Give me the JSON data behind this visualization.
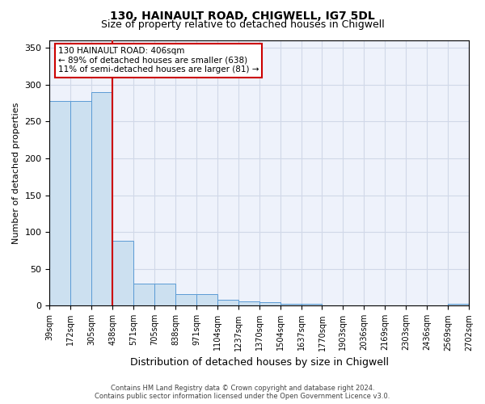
{
  "title1": "130, HAINAULT ROAD, CHIGWELL, IG7 5DL",
  "title2": "Size of property relative to detached houses in Chigwell",
  "xlabel": "Distribution of detached houses by size in Chigwell",
  "ylabel": "Number of detached properties",
  "tick_labels": [
    "39sqm",
    "172sqm",
    "305sqm",
    "438sqm",
    "571sqm",
    "705sqm",
    "838sqm",
    "971sqm",
    "1104sqm",
    "1237sqm",
    "1370sqm",
    "1504sqm",
    "1637sqm",
    "1770sqm",
    "1903sqm",
    "2036sqm",
    "2169sqm",
    "2303sqm",
    "2436sqm",
    "2569sqm",
    "2702sqm"
  ],
  "values": [
    278,
    278,
    290,
    88,
    30,
    30,
    16,
    16,
    8,
    6,
    5,
    3,
    3,
    0,
    0,
    0,
    0,
    0,
    0,
    3
  ],
  "bar_color": "#cce0f0",
  "bar_edge_color": "#5b9bd5",
  "red_line_bin_index": 3,
  "annotation_text": "130 HAINAULT ROAD: 406sqm\n← 89% of detached houses are smaller (638)\n11% of semi-detached houses are larger (81) →",
  "annotation_box_color": "#ffffff",
  "annotation_box_edge_color": "#cc0000",
  "red_line_color": "#cc0000",
  "grid_color": "#d0d8e8",
  "background_color": "#eef2fb",
  "footnote": "Contains HM Land Registry data © Crown copyright and database right 2024.\nContains public sector information licensed under the Open Government Licence v3.0.",
  "ylim": [
    0,
    360
  ],
  "yticks": [
    0,
    50,
    100,
    150,
    200,
    250,
    300,
    350
  ]
}
